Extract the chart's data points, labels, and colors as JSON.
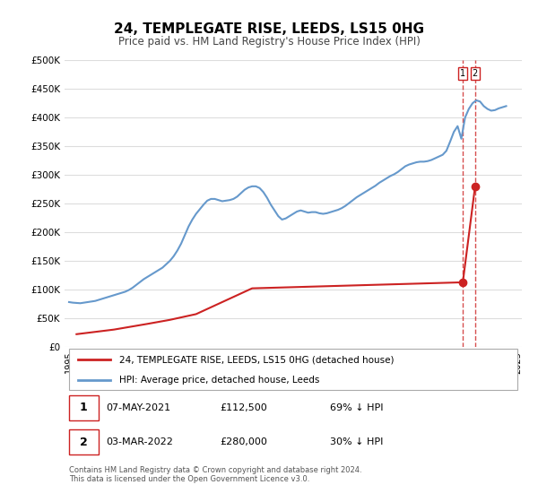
{
  "title": "24, TEMPLEGATE RISE, LEEDS, LS15 0HG",
  "subtitle": "Price paid vs. HM Land Registry's House Price Index (HPI)",
  "xlabel": "",
  "ylabel": "",
  "ylim": [
    0,
    500000
  ],
  "yticks": [
    0,
    50000,
    100000,
    150000,
    200000,
    250000,
    300000,
    350000,
    400000,
    450000,
    500000
  ],
  "ytick_labels": [
    "£0",
    "£50K",
    "£100K",
    "£150K",
    "£200K",
    "£250K",
    "£300K",
    "£350K",
    "£400K",
    "£450K",
    "£500K"
  ],
  "x_start_year": 1995,
  "x_end_year": 2025,
  "hpi_color": "#6699cc",
  "price_color": "#cc2222",
  "vline_color": "#cc2222",
  "background_color": "#ffffff",
  "grid_color": "#dddddd",
  "transactions": [
    {
      "date_num": 2021.35,
      "price": 112500,
      "label": "1"
    },
    {
      "date_num": 2022.17,
      "price": 280000,
      "label": "2"
    }
  ],
  "legend_entries": [
    "24, TEMPLEGATE RISE, LEEDS, LS15 0HG (detached house)",
    "HPI: Average price, detached house, Leeds"
  ],
  "table_rows": [
    {
      "num": "1",
      "date": "07-MAY-2021",
      "price": "£112,500",
      "note": "69% ↓ HPI"
    },
    {
      "num": "2",
      "date": "03-MAR-2022",
      "price": "£280,000",
      "note": "30% ↓ HPI"
    }
  ],
  "footnote": "Contains HM Land Registry data © Crown copyright and database right 2024.\nThis data is licensed under the Open Government Licence v3.0.",
  "hpi_data_x": [
    1995.0,
    1995.25,
    1995.5,
    1995.75,
    1996.0,
    1996.25,
    1996.5,
    1996.75,
    1997.0,
    1997.25,
    1997.5,
    1997.75,
    1998.0,
    1998.25,
    1998.5,
    1998.75,
    1999.0,
    1999.25,
    1999.5,
    1999.75,
    2000.0,
    2000.25,
    2000.5,
    2000.75,
    2001.0,
    2001.25,
    2001.5,
    2001.75,
    2002.0,
    2002.25,
    2002.5,
    2002.75,
    2003.0,
    2003.25,
    2003.5,
    2003.75,
    2004.0,
    2004.25,
    2004.5,
    2004.75,
    2005.0,
    2005.25,
    2005.5,
    2005.75,
    2006.0,
    2006.25,
    2006.5,
    2006.75,
    2007.0,
    2007.25,
    2007.5,
    2007.75,
    2008.0,
    2008.25,
    2008.5,
    2008.75,
    2009.0,
    2009.25,
    2009.5,
    2009.75,
    2010.0,
    2010.25,
    2010.5,
    2010.75,
    2011.0,
    2011.25,
    2011.5,
    2011.75,
    2012.0,
    2012.25,
    2012.5,
    2012.75,
    2013.0,
    2013.25,
    2013.5,
    2013.75,
    2014.0,
    2014.25,
    2014.5,
    2014.75,
    2015.0,
    2015.25,
    2015.5,
    2015.75,
    2016.0,
    2016.25,
    2016.5,
    2016.75,
    2017.0,
    2017.25,
    2017.5,
    2017.75,
    2018.0,
    2018.25,
    2018.5,
    2018.75,
    2019.0,
    2019.25,
    2019.5,
    2019.75,
    2020.0,
    2020.25,
    2020.5,
    2020.75,
    2021.0,
    2021.25,
    2021.5,
    2021.75,
    2022.0,
    2022.25,
    2022.5,
    2022.75,
    2023.0,
    2023.25,
    2023.5,
    2023.75,
    2024.0,
    2024.25
  ],
  "hpi_data_y": [
    78000,
    77000,
    76500,
    76000,
    77000,
    78000,
    79000,
    80000,
    82000,
    84000,
    86000,
    88000,
    90000,
    92000,
    94000,
    96000,
    99000,
    103000,
    108000,
    113000,
    118000,
    122000,
    126000,
    130000,
    134000,
    138000,
    144000,
    150000,
    158000,
    168000,
    180000,
    195000,
    210000,
    222000,
    232000,
    240000,
    248000,
    255000,
    258000,
    258000,
    256000,
    254000,
    255000,
    256000,
    258000,
    262000,
    268000,
    274000,
    278000,
    280000,
    280000,
    277000,
    270000,
    260000,
    248000,
    238000,
    228000,
    222000,
    224000,
    228000,
    232000,
    236000,
    238000,
    236000,
    234000,
    235000,
    235000,
    233000,
    232000,
    233000,
    235000,
    237000,
    239000,
    242000,
    246000,
    251000,
    256000,
    261000,
    265000,
    269000,
    273000,
    277000,
    281000,
    286000,
    290000,
    294000,
    298000,
    301000,
    305000,
    310000,
    315000,
    318000,
    320000,
    322000,
    323000,
    323000,
    324000,
    326000,
    329000,
    332000,
    335000,
    342000,
    358000,
    375000,
    385000,
    363000,
    400000,
    415000,
    425000,
    430000,
    428000,
    420000,
    415000,
    412000,
    413000,
    416000,
    418000,
    420000
  ],
  "price_data_x": [
    1995.5,
    1998.0,
    2000.25,
    2001.75,
    2003.5,
    2007.25,
    2021.35,
    2022.17
  ],
  "price_data_y": [
    22000,
    30000,
    40000,
    47000,
    57000,
    102000,
    112500,
    280000
  ]
}
